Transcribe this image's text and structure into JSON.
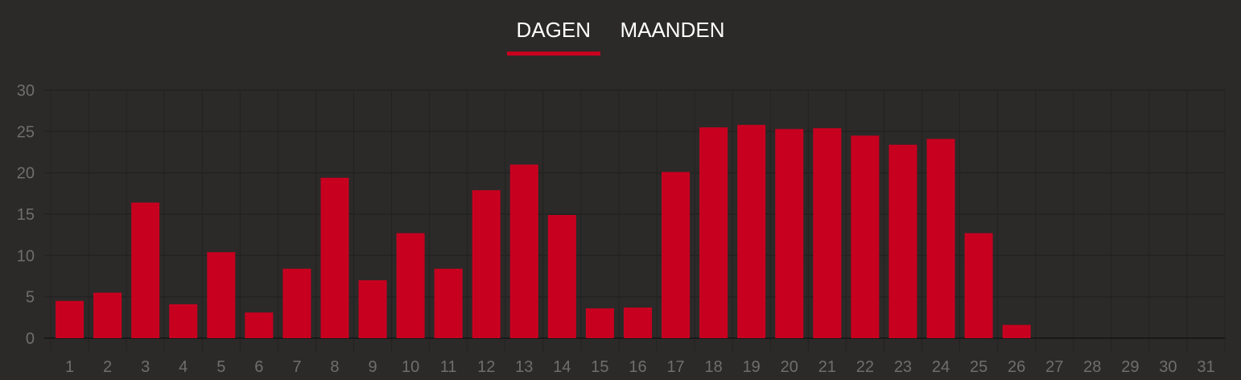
{
  "tabs": [
    {
      "label": "DAGEN",
      "active": true
    },
    {
      "label": "MAANDEN",
      "active": false
    }
  ],
  "colors": {
    "bar": "#c8001f",
    "background": "#2b2a29",
    "grid": "#232221",
    "tick_text": "#6f6e6d",
    "tab_indicator": "#c8001f"
  },
  "chart_data": {
    "type": "bar",
    "categories": [
      "1",
      "2",
      "3",
      "4",
      "5",
      "6",
      "7",
      "8",
      "9",
      "10",
      "11",
      "12",
      "13",
      "14",
      "15",
      "16",
      "17",
      "18",
      "19",
      "20",
      "21",
      "22",
      "23",
      "24",
      "25",
      "26",
      "27",
      "28",
      "29",
      "30",
      "31"
    ],
    "values": [
      4.5,
      5.5,
      16.4,
      4.1,
      10.4,
      3.1,
      8.4,
      19.4,
      7.0,
      12.7,
      8.4,
      17.9,
      21.0,
      14.9,
      3.6,
      3.7,
      20.1,
      25.5,
      25.8,
      25.3,
      25.4,
      24.5,
      23.4,
      24.1,
      12.7,
      1.6,
      0,
      0,
      0,
      0,
      0
    ],
    "ylim": [
      0,
      30
    ],
    "yticks": [
      "0",
      "5",
      "10",
      "15",
      "20",
      "25",
      "30"
    ],
    "grid": true,
    "title": "",
    "xlabel": "",
    "ylabel": ""
  }
}
